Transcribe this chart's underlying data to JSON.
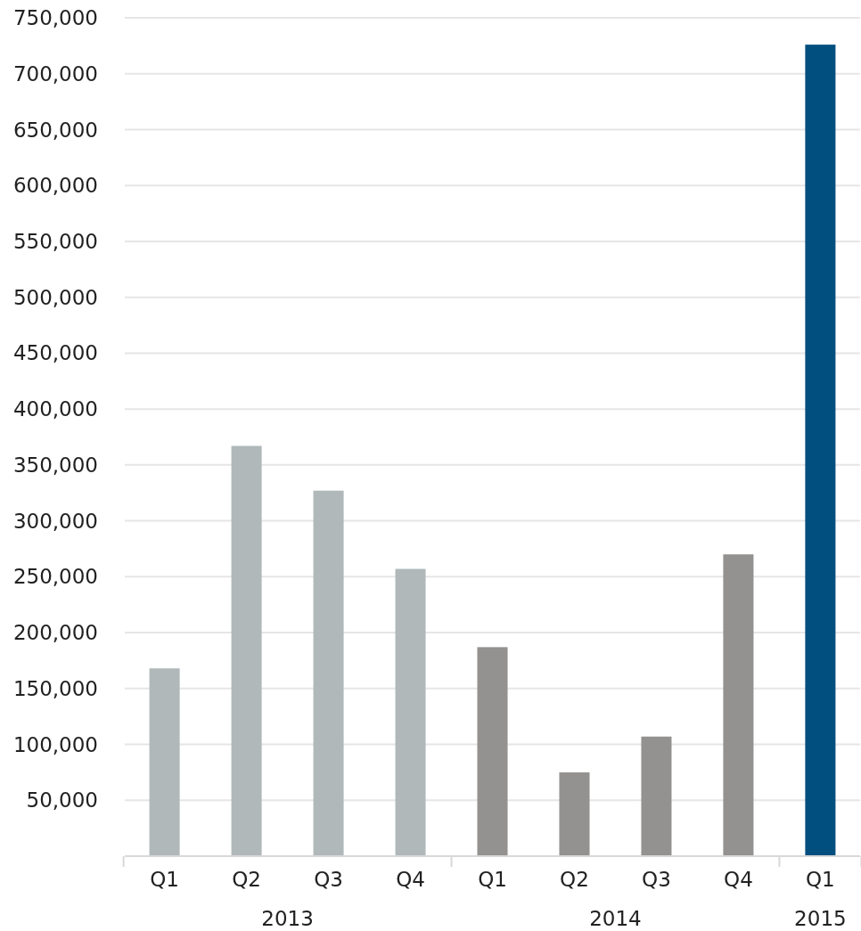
{
  "chart_data": {
    "type": "bar",
    "categories": [
      "Q1",
      "Q2",
      "Q3",
      "Q4",
      "Q1",
      "Q2",
      "Q3",
      "Q4",
      "Q1"
    ],
    "values": [
      168000,
      367000,
      327000,
      257000,
      187000,
      75000,
      107000,
      270000,
      726000
    ],
    "colors": [
      "#b0b8b9",
      "#b0b8b9",
      "#b0b8b9",
      "#b0b8b9",
      "#939290",
      "#939290",
      "#939290",
      "#939290",
      "#004f7f"
    ],
    "annotations": [
      "2013",
      "2014",
      "2015"
    ],
    "ylim": [
      0,
      750000
    ],
    "yticks": [
      {
        "value": 50000,
        "label": "50,000"
      },
      {
        "value": 100000,
        "label": "100,000"
      },
      {
        "value": 150000,
        "label": "150,000"
      },
      {
        "value": 200000,
        "label": "200,000"
      },
      {
        "value": 250000,
        "label": "250,000"
      },
      {
        "value": 300000,
        "label": "300,000"
      },
      {
        "value": 350000,
        "label": "350,000"
      },
      {
        "value": 400000,
        "label": "400,000"
      },
      {
        "value": 450000,
        "label": "450,000"
      },
      {
        "value": 500000,
        "label": "500,000"
      },
      {
        "value": 550000,
        "label": "550,000"
      },
      {
        "value": 600000,
        "label": "600,000"
      },
      {
        "value": 650000,
        "label": "650,000"
      },
      {
        "value": 700000,
        "label": "700,000"
      },
      {
        "value": 750000,
        "label": "750,000"
      }
    ],
    "grid": "y"
  }
}
